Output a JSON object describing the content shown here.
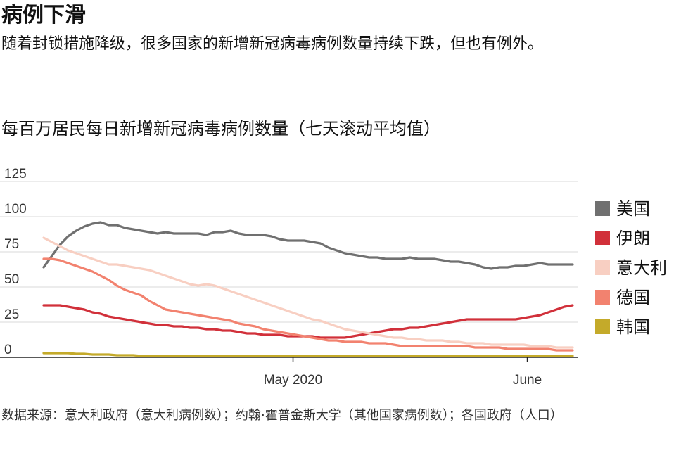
{
  "header": {
    "title": "病例下滑",
    "subtitle": "随着封锁措施降级，很多国家的新增新冠病毒病例数量持续下跌，但也有例外。"
  },
  "footer": {
    "source": "数据来源：意大利政府（意大利病例数）；约翰·霍普金斯大学（其他国家病例数）；各国政府（人口）"
  },
  "chart_data": {
    "type": "line",
    "title": "每百万居民每日新增新冠病毒病例数量（七天滚动平均值）",
    "xlabel": "",
    "ylabel": "",
    "x_start": "2020-03-29",
    "x_end": "2020-06-07",
    "x_ticks": [
      {
        "label": "May 2020",
        "date": "2020-05-01"
      },
      {
        "label": "June",
        "date": "2020-06-01"
      }
    ],
    "ylim": [
      0,
      125
    ],
    "y_ticks": [
      0,
      25,
      50,
      75,
      100,
      125
    ],
    "grid": true,
    "legend_position": "right",
    "series": [
      {
        "name": "美国",
        "color": "#707070",
        "values": [
          64,
          72,
          80,
          86,
          90,
          93,
          95,
          96,
          94,
          94,
          92,
          91,
          90,
          89,
          88,
          89,
          88,
          88,
          88,
          88,
          87,
          89,
          89,
          90,
          88,
          87,
          87,
          87,
          86,
          84,
          83,
          83,
          83,
          82,
          81,
          78,
          76,
          74,
          73,
          72,
          71,
          71,
          70,
          70,
          70,
          71,
          70,
          70,
          70,
          69,
          68,
          68,
          67,
          66,
          64,
          63,
          64,
          64,
          65,
          65,
          66,
          67,
          66,
          66,
          66,
          66
        ]
      },
      {
        "name": "伊朗",
        "color": "#d1303a",
        "values": [
          37,
          37,
          37,
          36,
          35,
          34,
          32,
          31,
          29,
          28,
          27,
          26,
          25,
          24,
          23,
          23,
          22,
          22,
          21,
          21,
          20,
          20,
          19,
          19,
          18,
          17,
          17,
          16,
          16,
          16,
          15,
          15,
          15,
          15,
          14,
          14,
          14,
          14,
          15,
          16,
          17,
          18,
          19,
          20,
          20,
          21,
          21,
          22,
          23,
          24,
          25,
          26,
          27,
          27,
          27,
          27,
          27,
          27,
          27,
          28,
          29,
          30,
          32,
          34,
          36,
          37
        ]
      },
      {
        "name": "意大利",
        "color": "#f8cfc2",
        "values": [
          85,
          82,
          79,
          76,
          74,
          72,
          70,
          68,
          66,
          66,
          65,
          64,
          63,
          62,
          60,
          58,
          56,
          54,
          52,
          51,
          52,
          51,
          49,
          47,
          45,
          43,
          41,
          39,
          37,
          35,
          33,
          31,
          29,
          27,
          26,
          24,
          22,
          20,
          19,
          18,
          17,
          16,
          15,
          14,
          14,
          13,
          13,
          12,
          12,
          12,
          11,
          11,
          10,
          10,
          10,
          9,
          9,
          9,
          9,
          9,
          8,
          8,
          8,
          7,
          7,
          7
        ]
      },
      {
        "name": "德国",
        "color": "#f2826f",
        "values": [
          70,
          70,
          69,
          67,
          65,
          63,
          61,
          58,
          55,
          51,
          48,
          46,
          44,
          40,
          37,
          34,
          33,
          32,
          31,
          30,
          29,
          28,
          27,
          26,
          24,
          23,
          22,
          20,
          19,
          18,
          17,
          16,
          15,
          14,
          13,
          12,
          12,
          11,
          11,
          11,
          10,
          10,
          10,
          9,
          8,
          8,
          8,
          8,
          8,
          8,
          8,
          8,
          8,
          7,
          7,
          7,
          7,
          6,
          6,
          6,
          6,
          6,
          6,
          5,
          5,
          5
        ]
      },
      {
        "name": "韩国",
        "color": "#c4aa2a",
        "values": [
          3,
          3,
          3,
          3,
          2.5,
          2.5,
          2,
          2,
          2,
          1.5,
          1.5,
          1.5,
          1,
          1,
          1,
          1,
          1,
          1,
          1,
          1,
          1,
          1,
          1,
          1,
          1,
          1,
          1,
          1,
          1,
          1,
          1,
          1,
          1,
          1,
          1,
          1,
          1,
          1,
          1,
          1,
          1,
          1,
          1,
          1,
          1,
          1,
          1,
          1,
          1,
          1,
          1,
          1,
          1,
          1,
          1,
          1,
          1,
          1,
          1,
          1,
          1,
          1,
          1,
          1,
          1,
          1
        ]
      }
    ]
  }
}
